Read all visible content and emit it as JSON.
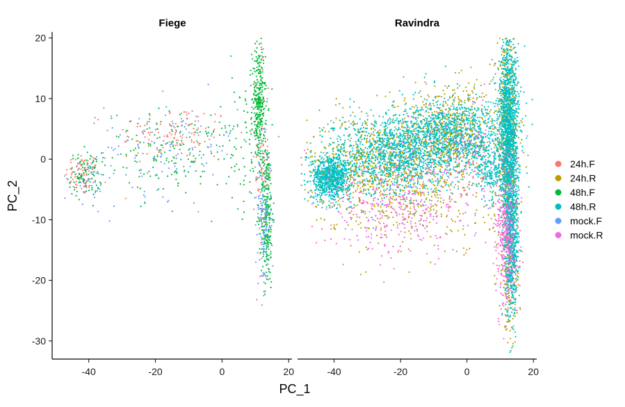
{
  "chart_data": {
    "type": "scatter",
    "facets": [
      "Fiege",
      "Ravindra"
    ],
    "xlabel": "PC_1",
    "ylabel": "PC_2",
    "xlim": [
      -51,
      21
    ],
    "ylim": [
      -33,
      21
    ],
    "x_ticks": [
      -40,
      -20,
      0,
      20
    ],
    "y_ticks": [
      20,
      10,
      0,
      -10,
      -20,
      -30
    ],
    "x_tick_labels": [
      "-40",
      "-20",
      "0",
      "20"
    ],
    "y_tick_labels": [
      "20",
      "10",
      "0",
      "-10",
      "-20",
      "-30"
    ],
    "grid": false,
    "legend_position": "right",
    "series": [
      {
        "name": "24h.F",
        "color": "#F8766D"
      },
      {
        "name": "24h.R",
        "color": "#B79F00"
      },
      {
        "name": "48h.F",
        "color": "#00BA38"
      },
      {
        "name": "48h.R",
        "color": "#00BFC4"
      },
      {
        "name": "mock.F",
        "color": "#619CFF"
      },
      {
        "name": "mock.R",
        "color": "#F564E3"
      }
    ],
    "clusters": {
      "Fiege": [
        {
          "series": "24h.F",
          "cx": -42,
          "cy": -2.5,
          "sx": 2.5,
          "sy": 1.8,
          "n": 80
        },
        {
          "series": "24h.F",
          "cx": -15,
          "cy": 4,
          "sx": 9,
          "sy": 2.5,
          "n": 130
        },
        {
          "series": "24h.F",
          "cx": 12,
          "cy": 0,
          "sx": 1.0,
          "sy": 10,
          "n": 90
        },
        {
          "series": "48h.F",
          "cx": -41,
          "cy": -2.5,
          "sx": 2.5,
          "sy": 1.8,
          "n": 90
        },
        {
          "series": "48h.F",
          "cx": -15,
          "cy": 1,
          "sx": 10,
          "sy": 3.5,
          "n": 160
        },
        {
          "series": "48h.F",
          "cx": 11,
          "cy": 9,
          "sx": 1.0,
          "sy": 5,
          "n": 320
        },
        {
          "series": "48h.F",
          "cx": 13.5,
          "cy": -9,
          "sx": 0.9,
          "sy": 6,
          "n": 260
        },
        {
          "series": "48h.F",
          "cx": 5,
          "cy": 4,
          "sx": 4,
          "sy": 6,
          "n": 70
        },
        {
          "series": "mock.F",
          "cx": -15,
          "cy": 2,
          "sx": 10,
          "sy": 4,
          "n": 110
        },
        {
          "series": "mock.F",
          "cx": 12.5,
          "cy": -10,
          "sx": 1.2,
          "sy": 6,
          "n": 140
        },
        {
          "series": "mock.F",
          "cx": -40,
          "cy": -3,
          "sx": 3,
          "sy": 2.5,
          "n": 40
        }
      ],
      "Ravindra": [
        {
          "series": "24h.R",
          "cx": -28,
          "cy": -1,
          "sx": 10,
          "sy": 4,
          "n": 700
        },
        {
          "series": "24h.R",
          "cx": -5,
          "cy": 4,
          "sx": 9,
          "sy": 4,
          "n": 700
        },
        {
          "series": "24h.R",
          "cx": 12,
          "cy": 4,
          "sx": 1.5,
          "sy": 10,
          "n": 600
        },
        {
          "series": "24h.R",
          "cx": -15,
          "cy": -8,
          "sx": 12,
          "sy": 4,
          "n": 250
        },
        {
          "series": "24h.R",
          "cx": 13,
          "cy": -18,
          "sx": 1.2,
          "sy": 5,
          "n": 200
        },
        {
          "series": "48h.R",
          "cx": -41,
          "cy": -3,
          "sx": 3,
          "sy": 1.8,
          "n": 800
        },
        {
          "series": "48h.R",
          "cx": -22,
          "cy": 1,
          "sx": 9,
          "sy": 3.5,
          "n": 1200
        },
        {
          "series": "48h.R",
          "cx": -3,
          "cy": 4,
          "sx": 8,
          "sy": 3,
          "n": 1000
        },
        {
          "series": "48h.R",
          "cx": 12.5,
          "cy": 5,
          "sx": 1.5,
          "sy": 8,
          "n": 1400
        },
        {
          "series": "48h.R",
          "cx": 13.5,
          "cy": -12,
          "sx": 1.0,
          "sy": 7,
          "n": 700
        },
        {
          "series": "48h.R",
          "cx": 7,
          "cy": -2.5,
          "sx": 2.5,
          "sy": 1.8,
          "n": 200
        },
        {
          "series": "mock.R",
          "cx": -20,
          "cy": -8,
          "sx": 12,
          "sy": 4,
          "n": 350
        },
        {
          "series": "mock.R",
          "cx": 12,
          "cy": -13,
          "sx": 1.6,
          "sy": 6,
          "n": 350
        },
        {
          "series": "mock.R",
          "cx": -2,
          "cy": 1,
          "sx": 8,
          "sy": 4,
          "n": 150
        }
      ]
    }
  }
}
